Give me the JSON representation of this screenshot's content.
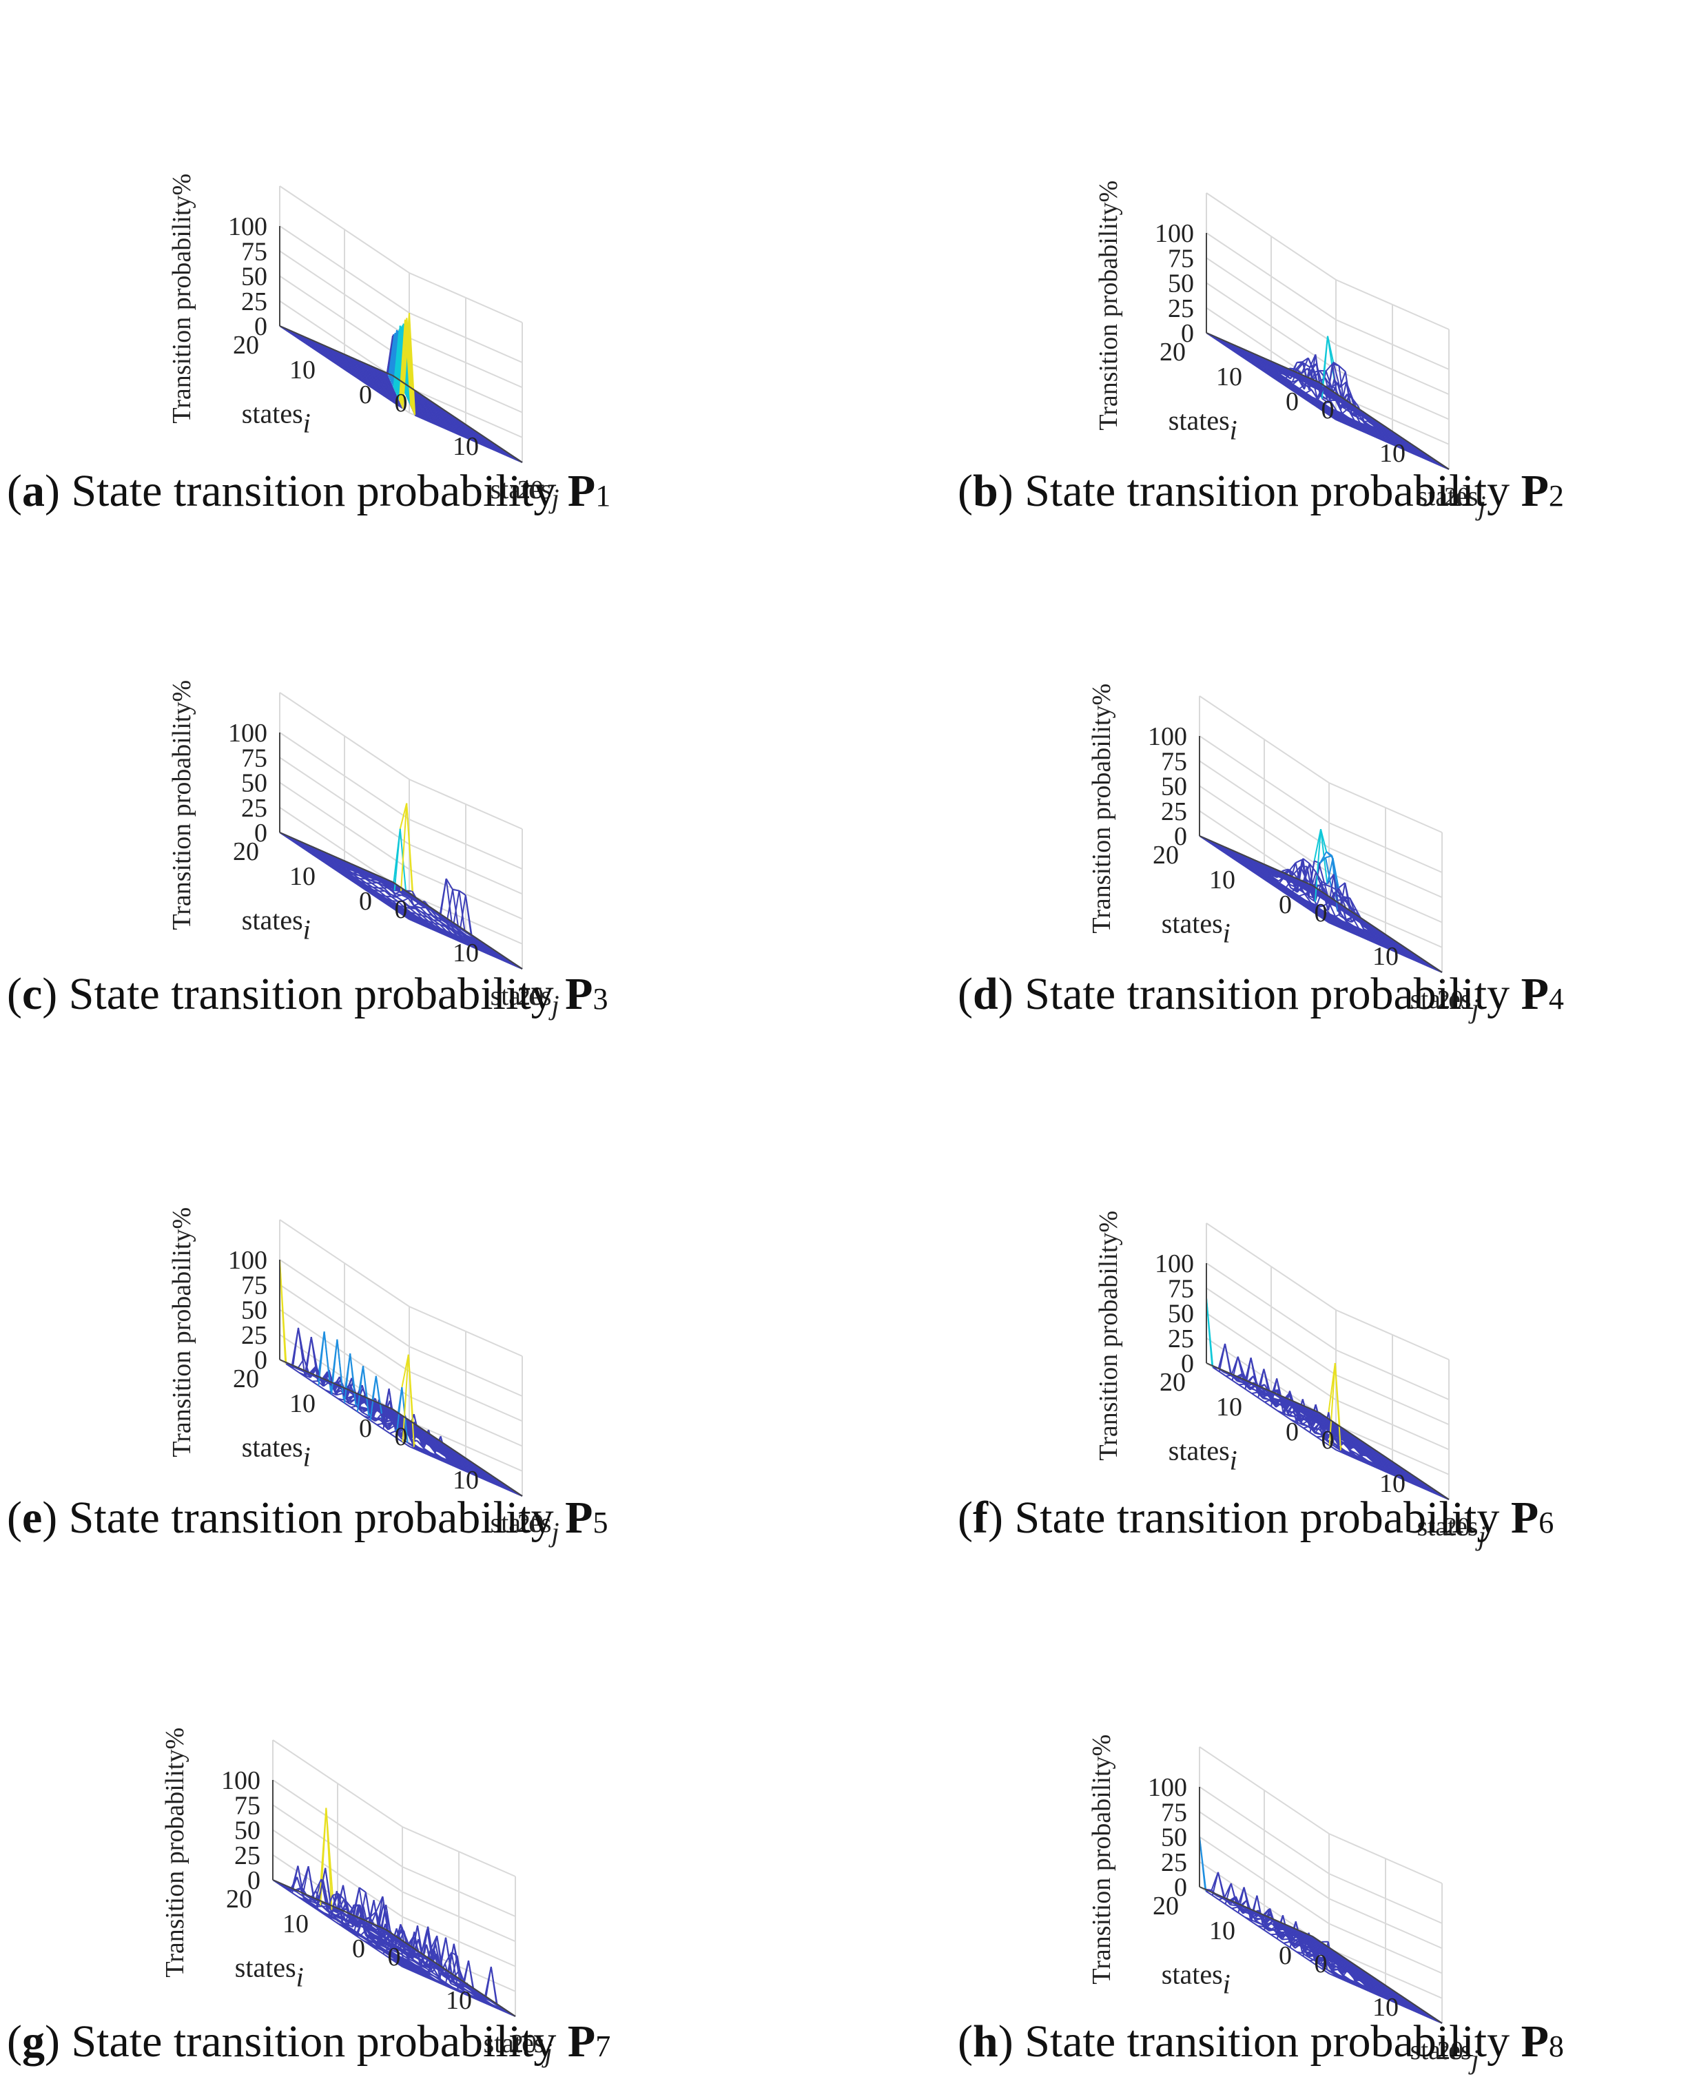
{
  "figure": {
    "panels": [
      {
        "letter": "a",
        "caption": "State transition probability",
        "symbol": "P",
        "subscript": "1"
      },
      {
        "letter": "b",
        "caption": "State transition probability",
        "symbol": "P",
        "subscript": "2"
      },
      {
        "letter": "c",
        "caption": "State transition probability",
        "symbol": "P",
        "subscript": "3"
      },
      {
        "letter": "d",
        "caption": "State transition probability",
        "symbol": "P",
        "subscript": "4"
      },
      {
        "letter": "e",
        "caption": "State transition probability",
        "symbol": "P",
        "subscript": "5"
      },
      {
        "letter": "f",
        "caption": "State transition probability",
        "symbol": "P",
        "subscript": "6"
      },
      {
        "letter": "g",
        "caption": "State transition probability",
        "symbol": "P",
        "subscript": "7"
      },
      {
        "letter": "h",
        "caption": "State transition probability",
        "symbol": "P",
        "subscript": "8"
      }
    ]
  },
  "colors": {
    "mesh_primary": "#3d3fb8",
    "mesh_secondary": "#1f8fe0",
    "mesh_peak_cyan": "#10c8d8",
    "mesh_peak_green": "#4cd07a",
    "mesh_peak_yellow": "#e8e020",
    "grid": "#d9d9d9",
    "axis": "#444444"
  },
  "chart_data": [
    {
      "type": "surface3d",
      "panel": "a",
      "zlabel": "Transition probability%",
      "xlabel_prefix": "states",
      "xlabel_sub": "j",
      "ylabel_prefix": "states",
      "ylabel_sub": "i",
      "zticks": [
        "0",
        "25",
        "50",
        "75",
        "100"
      ],
      "xticks": [
        "0",
        "10",
        "20"
      ],
      "yticks": [
        "0",
        "10",
        "20"
      ],
      "grid_size": 20,
      "zlim": [
        0,
        100
      ],
      "pattern": "diagonal",
      "peak_value": 100,
      "peak_at": [
        20,
        20
      ],
      "diag_base": 40
    },
    {
      "type": "surface3d",
      "panel": "b",
      "zlabel": "Transition probability%",
      "xlabel_prefix": "states",
      "xlabel_sub": "j",
      "ylabel_prefix": "states",
      "ylabel_sub": "i",
      "zticks": [
        "0",
        "25",
        "50",
        "75",
        "100"
      ],
      "xticks": [
        "0",
        "10",
        "20"
      ],
      "yticks": [
        "0",
        "10",
        "20"
      ],
      "grid_size": 20,
      "zlim": [
        0,
        100
      ],
      "pattern": "central_cluster",
      "peak_value": 65
    },
    {
      "type": "surface3d",
      "panel": "c",
      "zlabel": "Transition probability%",
      "xlabel_prefix": "states",
      "xlabel_sub": "j",
      "ylabel_prefix": "states",
      "ylabel_sub": "i",
      "zticks": [
        "0",
        "25",
        "50",
        "75",
        "100"
      ],
      "xticks": [
        "0",
        "10",
        "20"
      ],
      "yticks": [
        "0",
        "10",
        "20"
      ],
      "grid_size": 20,
      "zlim": [
        0,
        100
      ],
      "pattern": "single_spike",
      "peak_value": 100,
      "peak_at": [
        9,
        10
      ]
    },
    {
      "type": "surface3d",
      "panel": "d",
      "zlabel": "Transition probability%",
      "xlabel_prefix": "states",
      "xlabel_sub": "j",
      "ylabel_prefix": "states",
      "ylabel_sub": "i",
      "zticks": [
        "0",
        "25",
        "50",
        "75",
        "100"
      ],
      "xticks": [
        "0",
        "10",
        "20"
      ],
      "yticks": [
        "0",
        "10",
        "20"
      ],
      "grid_size": 20,
      "zlim": [
        0,
        100
      ],
      "pattern": "central_cluster",
      "peak_value": 75
    },
    {
      "type": "surface3d",
      "panel": "e",
      "zlabel": "Transition probability%",
      "xlabel_prefix": "states",
      "xlabel_sub": "j",
      "ylabel_prefix": "states",
      "ylabel_sub": "i",
      "zticks": [
        "0",
        "25",
        "50",
        "75",
        "100"
      ],
      "xticks": [
        "0",
        "10",
        "20"
      ],
      "yticks": [
        "0",
        "10",
        "20"
      ],
      "grid_size": 20,
      "zlim": [
        0,
        100
      ],
      "pattern": "back_ridge",
      "ridge_value": 50,
      "end_peaks": [
        100,
        90
      ]
    },
    {
      "type": "surface3d",
      "panel": "f",
      "zlabel": "Transition probability%",
      "xlabel_prefix": "states",
      "xlabel_sub": "j",
      "ylabel_prefix": "states",
      "ylabel_sub": "i",
      "zticks": [
        "0",
        "25",
        "50",
        "75",
        "100"
      ],
      "xticks": [
        "0",
        "10",
        "20"
      ],
      "yticks": [
        "0",
        "10",
        "20"
      ],
      "grid_size": 20,
      "zlim": [
        0,
        100
      ],
      "pattern": "back_ridge",
      "ridge_value": 30,
      "end_peaks": [
        65,
        85
      ]
    },
    {
      "type": "surface3d",
      "panel": "g",
      "zlabel": "Transition probability%",
      "xlabel_prefix": "states",
      "xlabel_sub": "j",
      "ylabel_prefix": "states",
      "ylabel_sub": "i",
      "zticks": [
        "0",
        "25",
        "50",
        "75",
        "100"
      ],
      "xticks": [
        "0",
        "10",
        "20"
      ],
      "yticks": [
        "0",
        "10",
        "20"
      ],
      "grid_size": 20,
      "zlim": [
        0,
        100
      ],
      "pattern": "scattered",
      "peak_value": 100,
      "peak_at": [
        14,
        3
      ]
    },
    {
      "type": "surface3d",
      "panel": "h",
      "zlabel": "Transition probability%",
      "xlabel_prefix": "states",
      "xlabel_sub": "j",
      "ylabel_prefix": "states",
      "ylabel_sub": "i",
      "zticks": [
        "0",
        "25",
        "50",
        "75",
        "100"
      ],
      "xticks": [
        "0",
        "10",
        "20"
      ],
      "yticks": [
        "0",
        "10",
        "20"
      ],
      "grid_size": 20,
      "zlim": [
        0,
        100
      ],
      "pattern": "back_ridge",
      "ridge_value": 25,
      "end_peaks": [
        50,
        30
      ]
    }
  ]
}
